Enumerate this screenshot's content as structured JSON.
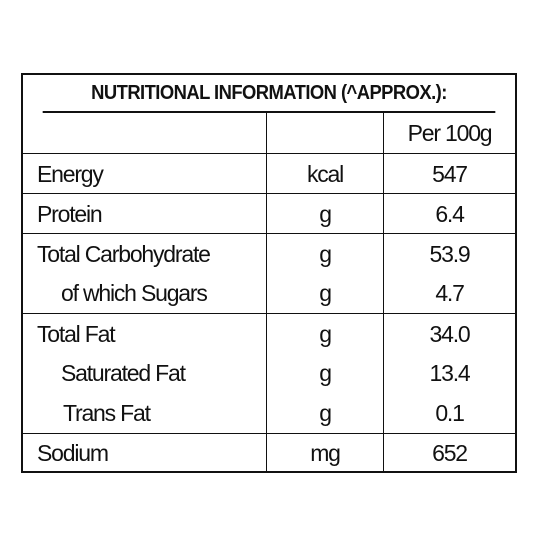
{
  "panel": {
    "title": "NUTRITIONAL INFORMATION (^APPROX.):",
    "header": {
      "name": "",
      "unit": "",
      "value": "Per 100g"
    },
    "rows": [
      {
        "name": "Energy",
        "unit": "kcal",
        "value": "547"
      },
      {
        "name": "Protein",
        "unit": "g",
        "value": "6.4"
      },
      {
        "name": "Total Carbohydrate",
        "unit": "g",
        "value": "53.9"
      },
      {
        "name": "of which Sugars",
        "unit": "g",
        "value": "4.7"
      },
      {
        "name": "Total Fat",
        "unit": "g",
        "value": "34.0"
      },
      {
        "name": "Saturated Fat",
        "unit": "g",
        "value": "13.4"
      },
      {
        "name": "Trans Fat",
        "unit": "g",
        "value": "0.1"
      },
      {
        "name": "Sodium",
        "unit": "mg",
        "value": "652"
      }
    ]
  },
  "colors": {
    "ink": "#111111",
    "background": "#ffffff"
  }
}
